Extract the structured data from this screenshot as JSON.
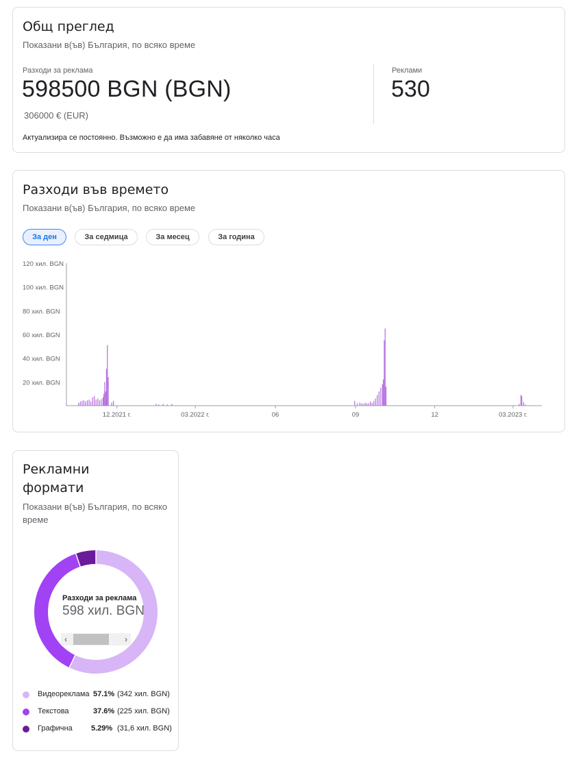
{
  "overview": {
    "title": "Общ преглед",
    "subtitle": "Показани в(ъв) България, по всяко време",
    "spend_label": "Разходи за реклама",
    "spend_value": "598500 BGN (BGN)",
    "spend_eur": "306000 € (EUR)",
    "ads_label": "Реклами",
    "ads_value": "530",
    "note": "Актуализира се постоянно. Възможно е да има забавяне от няколко часа"
  },
  "spend_over_time": {
    "title": "Разходи във времето",
    "subtitle": "Показани в(ъв) България, по всяко време",
    "chips": [
      {
        "label": "За ден",
        "active": true
      },
      {
        "label": "За седмица",
        "active": false
      },
      {
        "label": "За месец",
        "active": false
      },
      {
        "label": "За година",
        "active": false
      }
    ]
  },
  "chart_data": {
    "type": "bar",
    "title": "",
    "xlabel": "",
    "ylabel": "",
    "ylim": [
      0,
      120
    ],
    "y_unit": "thousand BGN",
    "y_ticks": [
      "120 хил. BGN",
      "100 хил. BGN",
      "80 хил. BGN",
      "60 хил. BGN",
      "40 хил. BGN",
      "20 хил. BGN"
    ],
    "y_tick_values": [
      120,
      100,
      80,
      60,
      40,
      20
    ],
    "x_ticks": [
      {
        "label": "12.2021 г.",
        "date": "2021-12-01"
      },
      {
        "label": "03.2022 г.",
        "date": "2022-03-01"
      },
      {
        "label": "06",
        "date": "2022-06-01"
      },
      {
        "label": "09",
        "date": "2022-09-01"
      },
      {
        "label": "12",
        "date": "2022-12-01"
      },
      {
        "label": "03.2023 г.",
        "date": "2023-03-01"
      }
    ],
    "x_range": [
      "2021-10-04",
      "2023-04-03"
    ],
    "bar_color": "#b36bde",
    "series": [
      {
        "values": [
          {
            "date": "2021-10-04",
            "v": 1
          },
          {
            "date": "2021-10-18",
            "v": 2.5
          },
          {
            "date": "2021-10-20",
            "v": 3.5
          },
          {
            "date": "2021-10-22",
            "v": 4
          },
          {
            "date": "2021-10-24",
            "v": 4.5
          },
          {
            "date": "2021-10-26",
            "v": 3.5
          },
          {
            "date": "2021-10-28",
            "v": 4.5
          },
          {
            "date": "2021-10-30",
            "v": 5
          },
          {
            "date": "2021-11-01",
            "v": 3.5
          },
          {
            "date": "2021-11-03",
            "v": 7
          },
          {
            "date": "2021-11-05",
            "v": 8
          },
          {
            "date": "2021-11-07",
            "v": 5
          },
          {
            "date": "2021-11-09",
            "v": 6
          },
          {
            "date": "2021-11-11",
            "v": 4.5
          },
          {
            "date": "2021-11-13",
            "v": 5.5
          },
          {
            "date": "2021-11-15",
            "v": 7
          },
          {
            "date": "2021-11-16",
            "v": 10
          },
          {
            "date": "2021-11-17",
            "v": 20
          },
          {
            "date": "2021-11-18",
            "v": 12
          },
          {
            "date": "2021-11-19",
            "v": 31
          },
          {
            "date": "2021-11-20",
            "v": 51
          },
          {
            "date": "2021-11-21",
            "v": 24
          },
          {
            "date": "2021-11-25",
            "v": 2.5
          },
          {
            "date": "2021-11-27",
            "v": 4
          },
          {
            "date": "2022-01-15",
            "v": 1.5
          },
          {
            "date": "2022-01-18",
            "v": 1
          },
          {
            "date": "2022-01-23",
            "v": 1.5
          },
          {
            "date": "2022-01-28",
            "v": 1
          },
          {
            "date": "2022-02-02",
            "v": 1.5
          },
          {
            "date": "2022-08-31",
            "v": 4
          },
          {
            "date": "2022-09-03",
            "v": 2
          },
          {
            "date": "2022-09-06",
            "v": 2.5
          },
          {
            "date": "2022-09-08",
            "v": 2
          },
          {
            "date": "2022-09-10",
            "v": 1.5
          },
          {
            "date": "2022-09-12",
            "v": 2.5
          },
          {
            "date": "2022-09-14",
            "v": 2
          },
          {
            "date": "2022-09-16",
            "v": 2
          },
          {
            "date": "2022-09-18",
            "v": 3.5
          },
          {
            "date": "2022-09-20",
            "v": 2.5
          },
          {
            "date": "2022-09-22",
            "v": 4
          },
          {
            "date": "2022-09-24",
            "v": 6
          },
          {
            "date": "2022-09-26",
            "v": 9
          },
          {
            "date": "2022-09-28",
            "v": 12
          },
          {
            "date": "2022-09-30",
            "v": 15
          },
          {
            "date": "2022-10-02",
            "v": 18
          },
          {
            "date": "2022-10-03",
            "v": 22
          },
          {
            "date": "2022-10-04",
            "v": 55
          },
          {
            "date": "2022-10-05",
            "v": 65
          },
          {
            "date": "2022-10-06",
            "v": 16
          },
          {
            "date": "2023-03-08",
            "v": 1.5
          },
          {
            "date": "2023-03-10",
            "v": 9
          },
          {
            "date": "2023-03-11",
            "v": 8
          },
          {
            "date": "2023-03-13",
            "v": 3
          },
          {
            "date": "2023-03-15",
            "v": 1
          }
        ]
      }
    ]
  },
  "ad_formats": {
    "title": "Рекламни формати",
    "subtitle": "Показани в(ъв) България, по всяко време",
    "center_label": "Разходи за реклама",
    "center_value": "598 хил. BGN",
    "scroll_left": "‹",
    "scroll_right": "›",
    "items": [
      {
        "name": "Видеореклама",
        "pct": "57.1%",
        "amount": "(342 хил. BGN)",
        "value": 57.1,
        "color": "#d7b5f7"
      },
      {
        "name": "Текстова",
        "pct": "37.6%",
        "amount": "(225 хил. BGN)",
        "value": 37.6,
        "color": "#a142f4"
      },
      {
        "name": "Графична",
        "pct": "5.29%",
        "amount": "(31,6 хил. BGN)",
        "value": 5.29,
        "color": "#6a1b9a"
      }
    ]
  }
}
